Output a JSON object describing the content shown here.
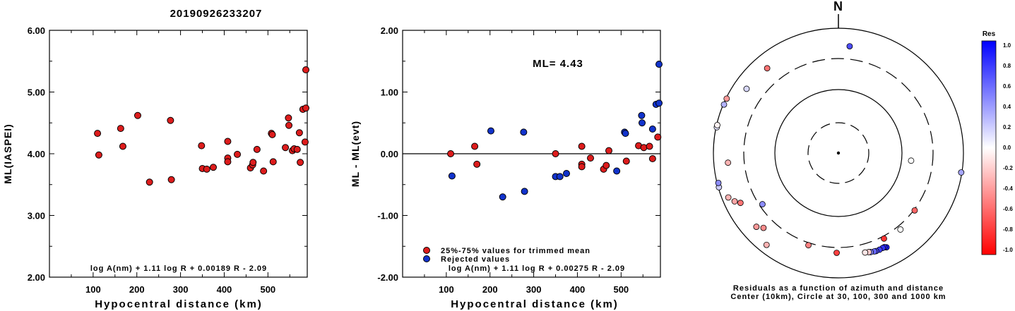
{
  "page_title": "20190926233207",
  "chart_data": [
    {
      "type": "scatter",
      "xlabel": "Hypocentral distance (km)",
      "ylabel": "ML(IASPEI)",
      "xlim": [
        0,
        590
      ],
      "ylim": [
        2.0,
        6.0
      ],
      "xticks": [
        "100",
        "200",
        "300",
        "400",
        "500"
      ],
      "yticks": [
        "2.00",
        "3.00",
        "4.00",
        "5.00",
        "6.00"
      ],
      "formula": "log A(nm) + 1.11 log R + 0.00189 R - 2.09",
      "series": [
        {
          "color": "#dd1c1c",
          "points": [
            [
              110,
              4.33
            ],
            [
              113,
              3.98
            ],
            [
              163,
              4.41
            ],
            [
              168,
              4.12
            ],
            [
              202,
              4.62
            ],
            [
              229,
              3.54
            ],
            [
              277,
              4.54
            ],
            [
              279,
              3.58
            ],
            [
              348,
              4.13
            ],
            [
              350,
              3.76
            ],
            [
              360,
              3.75
            ],
            [
              375,
              3.78
            ],
            [
              408,
              4.2
            ],
            [
              408,
              3.93
            ],
            [
              408,
              3.87
            ],
            [
              430,
              3.99
            ],
            [
              460,
              3.77
            ],
            [
              465,
              3.82
            ],
            [
              466,
              3.86
            ],
            [
              475,
              4.07
            ],
            [
              490,
              3.72
            ],
            [
              508,
              4.33
            ],
            [
              510,
              4.31
            ],
            [
              512,
              3.87
            ],
            [
              540,
              4.1
            ],
            [
              547,
              4.58
            ],
            [
              548,
              4.46
            ],
            [
              556,
              4.05
            ],
            [
              560,
              4.08
            ],
            [
              567,
              4.07
            ],
            [
              572,
              4.34
            ],
            [
              574,
              3.86
            ],
            [
              580,
              4.72
            ],
            [
              585,
              4.19
            ],
            [
              590,
              4.74
            ],
            [
              592,
              5.36
            ]
          ]
        }
      ]
    },
    {
      "type": "scatter",
      "xlabel": "Hypocentral distance (km)",
      "ylabel": "ML - ML(evt)",
      "xlim": [
        0,
        590
      ],
      "ylim": [
        -2.0,
        2.0
      ],
      "xticks": [
        "100",
        "200",
        "300",
        "400",
        "500"
      ],
      "yticks": [
        "-2.00",
        "-1.00",
        "0.00",
        "1.00",
        "2.00"
      ],
      "annotation": "ML= 4.43",
      "formula": "log A(nm) + 1.11 log R + 0.00275 R - 2.09",
      "legend": [
        {
          "label": "25%-75% values for trimmed mean",
          "color": "#dd1c1c"
        },
        {
          "label": "Rejected values",
          "color": "#1133cc"
        }
      ],
      "series": [
        {
          "name": "25%-75% values for trimmed mean",
          "color": "#dd1c1c",
          "points": [
            [
              110,
              0.0
            ],
            [
              165,
              0.12
            ],
            [
              170,
              -0.17
            ],
            [
              350,
              0.0
            ],
            [
              410,
              -0.17
            ],
            [
              410,
              -0.21
            ],
            [
              410,
              0.12
            ],
            [
              430,
              -0.07
            ],
            [
              460,
              -0.25
            ],
            [
              466,
              -0.19
            ],
            [
              472,
              0.05
            ],
            [
              512,
              -0.12
            ],
            [
              540,
              0.13
            ],
            [
              552,
              0.1
            ],
            [
              565,
              0.12
            ],
            [
              572,
              -0.08
            ],
            [
              584,
              0.27
            ]
          ]
        },
        {
          "name": "Rejected values",
          "color": "#1133cc",
          "points": [
            [
              113,
              -0.36
            ],
            [
              202,
              0.37
            ],
            [
              229,
              -0.7
            ],
            [
              277,
              0.35
            ],
            [
              279,
              -0.61
            ],
            [
              350,
              -0.37
            ],
            [
              360,
              -0.37
            ],
            [
              375,
              -0.32
            ],
            [
              490,
              -0.28
            ],
            [
              508,
              0.35
            ],
            [
              510,
              0.33
            ],
            [
              547,
              0.62
            ],
            [
              548,
              0.5
            ],
            [
              572,
              0.4
            ],
            [
              580,
              0.8
            ],
            [
              590,
              0.82
            ],
            [
              592,
              1.45
            ]
          ]
        }
      ]
    },
    {
      "type": "polar-scatter",
      "north_label": "N",
      "caption_line1": "Residuals as a function of azimuth and distance",
      "caption_line2": "Center (10km), Circle at 30, 100, 300 and 1000 km",
      "rings_km": [
        30,
        100,
        300,
        1000
      ],
      "colorbar": {
        "title": "Res",
        "labels": [
          "1.0",
          "0.8",
          "0.6",
          "0.4",
          "0.2",
          "0.0",
          "-0.2",
          "-0.4",
          "-0.6",
          "-0.8",
          "-1.0"
        ],
        "values": [
          1.0,
          0.8,
          0.6,
          0.4,
          0.2,
          0.0,
          -0.2,
          -0.4,
          -0.6,
          -0.8,
          -1.0
        ]
      },
      "stations": [
        {
          "az": 6,
          "dist_km": 500,
          "res": 0.7
        },
        {
          "az": 96,
          "dist_km": 140,
          "res": 0.0
        },
        {
          "az": 127,
          "dist_km": 310,
          "res": -0.6
        },
        {
          "az": 99,
          "dist_km": 1050,
          "res": 0.35
        },
        {
          "az": 141,
          "dist_km": 350,
          "res": 0.0
        },
        {
          "az": 152,
          "dist_km": 330,
          "res": -0.8
        },
        {
          "az": 153,
          "dist_km": 470,
          "res": 0.9
        },
        {
          "az": 154,
          "dist_km": 450,
          "res": 0.85
        },
        {
          "az": 155,
          "dist_km": 450,
          "res": 0.8
        },
        {
          "az": 157,
          "dist_km": 455,
          "res": 0.75
        },
        {
          "az": 159,
          "dist_km": 455,
          "res": 0.7
        },
        {
          "az": 160,
          "dist_km": 450,
          "res": 0.6
        },
        {
          "az": 162,
          "dist_km": 440,
          "res": 0.5
        },
        {
          "az": 163,
          "dist_km": 430,
          "res": -0.2
        },
        {
          "az": 165,
          "dist_km": 420,
          "res": -0.1
        },
        {
          "az": 181,
          "dist_km": 370,
          "res": -0.75
        },
        {
          "az": 198,
          "dist_km": 330,
          "res": -0.5
        },
        {
          "az": 218,
          "dist_km": 720,
          "res": -0.3
        },
        {
          "az": 225,
          "dist_km": 470,
          "res": -0.45
        },
        {
          "az": 228,
          "dist_km": 560,
          "res": -0.4
        },
        {
          "az": 236,
          "dist_km": 270,
          "res": 0.45
        },
        {
          "az": 243,
          "dist_km": 550,
          "res": -0.55
        },
        {
          "az": 245,
          "dist_km": 660,
          "res": -0.35
        },
        {
          "az": 248,
          "dist_km": 780,
          "res": -0.3
        },
        {
          "az": 254,
          "dist_km": 1100,
          "res": 0.2
        },
        {
          "az": 256,
          "dist_km": 950,
          "res": 0.45
        },
        {
          "az": 265,
          "dist_km": 570,
          "res": -0.3
        },
        {
          "az": 282,
          "dist_km": 1300,
          "res": 0.1
        },
        {
          "az": 283,
          "dist_km": 1350,
          "res": -0.05
        },
        {
          "az": 293,
          "dist_km": 1150,
          "res": 0.3
        },
        {
          "az": 296,
          "dist_km": 1000,
          "res": -0.4
        },
        {
          "az": 305,
          "dist_km": 600,
          "res": 0.15
        },
        {
          "az": 320,
          "dist_km": 570,
          "res": -0.55
        }
      ]
    }
  ]
}
